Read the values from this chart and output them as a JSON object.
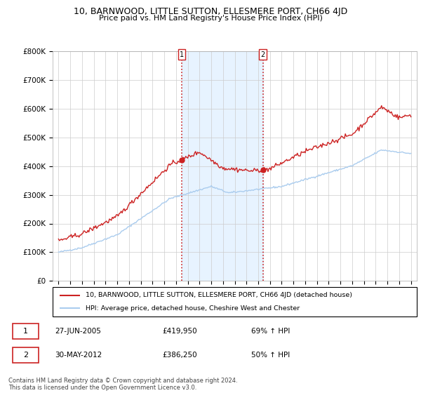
{
  "title": "10, BARNWOOD, LITTLE SUTTON, ELLESMERE PORT, CH66 4JD",
  "subtitle": "Price paid vs. HM Land Registry's House Price Index (HPI)",
  "ylabel_ticks": [
    "£0",
    "£100K",
    "£200K",
    "£300K",
    "£400K",
    "£500K",
    "£600K",
    "£700K",
    "£800K"
  ],
  "ylim": [
    0,
    800000
  ],
  "hpi_color": "#aaccee",
  "price_color": "#cc2222",
  "sale1_date_num": 2005.49,
  "sale1_price": 419950,
  "sale2_date_num": 2012.41,
  "sale2_price": 386250,
  "vline_color": "#cc2222",
  "legend_label1": "10, BARNWOOD, LITTLE SUTTON, ELLESMERE PORT, CH66 4JD (detached house)",
  "legend_label2": "HPI: Average price, detached house, Cheshire West and Chester",
  "table_row1": [
    "1",
    "27-JUN-2005",
    "£419,950",
    "69% ↑ HPI"
  ],
  "table_row2": [
    "2",
    "30-MAY-2012",
    "£386,250",
    "50% ↑ HPI"
  ],
  "footnote": "Contains HM Land Registry data © Crown copyright and database right 2024.\nThis data is licensed under the Open Government Licence v3.0.",
  "background_color": "#ffffff",
  "grid_color": "#cccccc",
  "shaded_region_color": "#ddeeff"
}
